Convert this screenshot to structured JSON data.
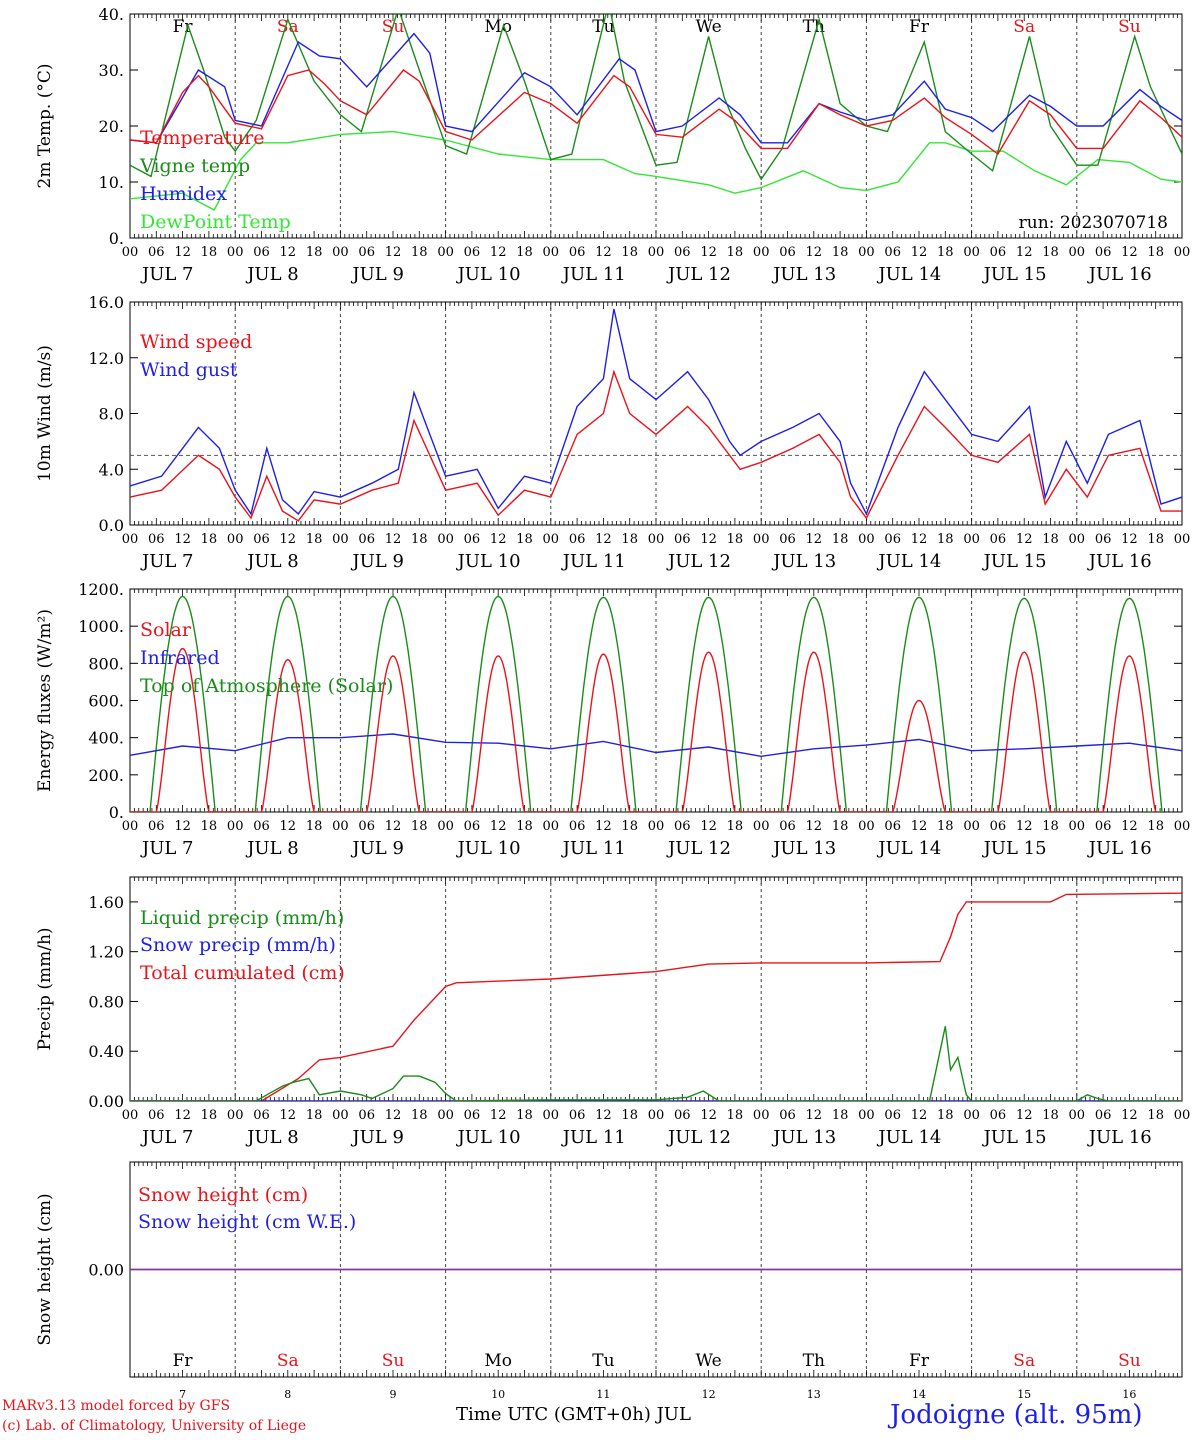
{
  "colors": {
    "red": "#e8131b",
    "green": "#1a8c1a",
    "blue": "#1f1fe6",
    "lime": "#33e633",
    "purple": "#7a3aa8",
    "black": "#000000"
  },
  "days": [
    {
      "dow": "Fr",
      "weekend": false,
      "label": "JUL  7",
      "num": "7"
    },
    {
      "dow": "Sa",
      "weekend": true,
      "label": "JUL  8",
      "num": "8"
    },
    {
      "dow": "Su",
      "weekend": true,
      "label": "JUL  9",
      "num": "9"
    },
    {
      "dow": "Mo",
      "weekend": false,
      "label": "JUL 10",
      "num": "10"
    },
    {
      "dow": "Tu",
      "weekend": false,
      "label": "JUL 11",
      "num": "11"
    },
    {
      "dow": "We",
      "weekend": false,
      "label": "JUL 12",
      "num": "12"
    },
    {
      "dow": "Th",
      "weekend": false,
      "label": "JUL 13",
      "num": "13"
    },
    {
      "dow": "Fr",
      "weekend": false,
      "label": "JUL 14",
      "num": "14"
    },
    {
      "dow": "Sa",
      "weekend": true,
      "label": "JUL 15",
      "num": "15"
    },
    {
      "dow": "Su",
      "weekend": true,
      "label": "JUL 16",
      "num": "16"
    }
  ],
  "hour_ticks": [
    "00",
    "06",
    "12",
    "18"
  ],
  "hour_end": "00",
  "footer": {
    "model": "MARv3.13 model forced by GFS",
    "credit": "(c) Lab. of Climatology, University of Liege",
    "xlabel": "Time UTC (GMT+0h) JUL",
    "station": "Jodoigne (alt. 95m)"
  },
  "chart_data": [
    {
      "type": "line",
      "ylabel": "2m Temp. (°C)",
      "ylim": [
        0,
        40
      ],
      "yticks": [
        "0.",
        "10.",
        "20.",
        "30.",
        "40."
      ],
      "annotation": "run: 2023070718",
      "x_unit": "day index (0 = JUL 7 00 UTC)",
      "series": [
        {
          "name": "Temperature",
          "color": "#e8131b",
          "x": [
            0,
            0.25,
            0.5,
            0.65,
            0.75,
            1,
            1.25,
            1.5,
            1.7,
            1.85,
            2,
            2.25,
            2.6,
            2.75,
            3,
            3.25,
            3.75,
            4,
            4.25,
            4.6,
            4.75,
            5,
            5.25,
            5.6,
            5.75,
            6,
            6.25,
            6.55,
            6.75,
            7,
            7.25,
            7.55,
            7.75,
            8,
            8.25,
            8.55,
            8.75,
            9,
            9.25,
            9.6,
            9.8,
            10
          ],
          "y": [
            17.5,
            17,
            26,
            29,
            27,
            20.5,
            19.5,
            29,
            30,
            27.5,
            24.5,
            22,
            30,
            28,
            19,
            17.5,
            26,
            24,
            20.5,
            29,
            27,
            18.5,
            18,
            23,
            21,
            16,
            16,
            24,
            22,
            20,
            21,
            25,
            21.5,
            18.5,
            15,
            24.5,
            22,
            16,
            16,
            24.5,
            21.5,
            18
          ]
        },
        {
          "name": "Vigne temp",
          "color": "#1a8c1a",
          "x": [
            0,
            0.2,
            0.55,
            0.7,
            0.9,
            1,
            1.2,
            1.5,
            1.75,
            2,
            2.2,
            2.55,
            2.75,
            3,
            3.2,
            3.55,
            3.75,
            4,
            4.2,
            4.55,
            4.7,
            5,
            5.2,
            5.5,
            5.65,
            5.85,
            6,
            6.2,
            6.55,
            6.75,
            7,
            7.2,
            7.55,
            7.75,
            8,
            8.2,
            8.55,
            8.75,
            9,
            9.2,
            9.55,
            9.7,
            10
          ],
          "y": [
            13,
            11,
            38,
            30,
            18,
            15.5,
            21,
            39,
            28,
            22,
            19,
            41,
            30,
            16.5,
            15,
            38,
            28,
            14,
            15,
            42,
            28,
            13,
            13.5,
            36,
            25,
            16,
            10.5,
            16,
            39,
            24,
            20,
            19,
            35,
            19,
            15,
            12,
            36,
            20,
            13,
            13,
            36,
            27,
            15
          ]
        },
        {
          "name": "Humidex",
          "color": "#1f1fe6",
          "x": [
            0,
            0.25,
            0.65,
            0.9,
            1,
            1.25,
            1.6,
            1.8,
            2,
            2.25,
            2.7,
            2.85,
            3,
            3.25,
            3.75,
            4,
            4.25,
            4.65,
            4.8,
            5,
            5.25,
            5.6,
            5.8,
            6,
            6.25,
            6.55,
            6.75,
            7,
            7.25,
            7.55,
            7.75,
            8,
            8.2,
            8.55,
            8.75,
            9,
            9.25,
            9.6,
            9.8,
            10
          ],
          "y": [
            17.5,
            17,
            30,
            27,
            21,
            20,
            35,
            32.5,
            32,
            27,
            36.5,
            33,
            20,
            19,
            29.5,
            27,
            22,
            32,
            30,
            19,
            20,
            25,
            22,
            17,
            17,
            24,
            22.5,
            21,
            22,
            28,
            23,
            21.5,
            19,
            25.5,
            23.5,
            20,
            20,
            26.5,
            23.5,
            21
          ]
        },
        {
          "name": "DewPoint Temp",
          "color": "#33e633",
          "x": [
            0,
            0.5,
            0.8,
            1.05,
            1.2,
            1.5,
            2,
            2.5,
            3,
            3.5,
            4,
            4.5,
            4.8,
            5,
            5.5,
            5.75,
            6,
            6.4,
            6.75,
            7,
            7.3,
            7.6,
            7.75,
            8,
            8.3,
            8.6,
            8.9,
            9.2,
            9.5,
            9.8,
            10
          ],
          "y": [
            7,
            8,
            5,
            14,
            17,
            17,
            18.5,
            19,
            17.5,
            15,
            14,
            14,
            11.5,
            11,
            9.5,
            8,
            9,
            12,
            9,
            8.5,
            10,
            17,
            17,
            15.5,
            15.5,
            12,
            9.5,
            14,
            13.5,
            10.5,
            10
          ]
        }
      ]
    },
    {
      "type": "line",
      "ylabel": "10m Wind (m/s)",
      "ylim": [
        0,
        16
      ],
      "yticks": [
        "0.0",
        "4.0",
        "8.0",
        "12.0",
        "16.0"
      ],
      "reference_line": 5,
      "x_unit": "day index (0 = JUL 7 00 UTC)",
      "series": [
        {
          "name": "Wind speed",
          "color": "#e8131b",
          "x": [
            0,
            0.3,
            0.65,
            0.85,
            1,
            1.15,
            1.3,
            1.45,
            1.6,
            1.75,
            2,
            2.3,
            2.55,
            2.7,
            2.85,
            3,
            3.3,
            3.5,
            3.75,
            4,
            4.25,
            4.5,
            4.6,
            4.75,
            5,
            5.3,
            5.5,
            5.7,
            5.8,
            6,
            6.3,
            6.55,
            6.75,
            6.85,
            7,
            7.3,
            7.55,
            7.75,
            8,
            8.25,
            8.55,
            8.7,
            8.9,
            9.1,
            9.3,
            9.6,
            9.8,
            10
          ],
          "y": [
            2,
            2.5,
            5,
            4,
            2,
            0.5,
            3.5,
            1,
            0.3,
            1.8,
            1.5,
            2.5,
            3,
            7.5,
            5,
            2.5,
            3,
            0.7,
            2.5,
            2,
            6.5,
            8,
            11,
            8,
            6.5,
            8.5,
            7,
            5,
            4,
            4.5,
            5.5,
            6.5,
            4.5,
            2,
            0.5,
            5,
            8.5,
            7,
            5,
            4.5,
            6.5,
            1.5,
            4,
            2,
            5,
            5.5,
            1,
            1
          ]
        },
        {
          "name": "Wind gust",
          "color": "#1f1fe6",
          "x": [
            0,
            0.3,
            0.65,
            0.85,
            1,
            1.15,
            1.3,
            1.45,
            1.6,
            1.75,
            2,
            2.3,
            2.55,
            2.7,
            2.85,
            3,
            3.3,
            3.5,
            3.75,
            4,
            4.25,
            4.5,
            4.6,
            4.75,
            5,
            5.3,
            5.5,
            5.7,
            5.8,
            6,
            6.3,
            6.55,
            6.75,
            6.85,
            7,
            7.3,
            7.55,
            7.75,
            8,
            8.25,
            8.55,
            8.7,
            8.9,
            9.1,
            9.3,
            9.6,
            9.8,
            10
          ],
          "y": [
            2.8,
            3.5,
            7,
            5.5,
            2.5,
            0.8,
            5.5,
            1.8,
            0.8,
            2.4,
            2,
            3,
            4,
            9.5,
            6.5,
            3.5,
            4,
            1.2,
            3.5,
            3,
            8.5,
            10.5,
            15.5,
            10.5,
            9,
            11,
            9,
            6,
            5,
            6,
            7,
            8,
            6,
            3,
            0.8,
            7,
            11,
            9,
            6.5,
            6,
            8.5,
            2,
            6,
            3,
            6.5,
            7.5,
            1.5,
            2
          ]
        }
      ]
    },
    {
      "type": "line",
      "ylabel": "Energy fluxes (W/m²)",
      "ylim": [
        0,
        1200
      ],
      "yticks": [
        "0.",
        "200.",
        "400.",
        "600.",
        "800.",
        "1000.",
        "1200."
      ],
      "x_unit": "day index (0 = JUL 7 00 UTC)",
      "series": [
        {
          "name": "Solar",
          "color": "#e8131b",
          "daily_peak": [
            880,
            820,
            840,
            840,
            850,
            860,
            860,
            600,
            860,
            840
          ]
        },
        {
          "name": "Infrared",
          "color": "#1f1fe6",
          "x": [
            0,
            0.5,
            1,
            1.5,
            2,
            2.5,
            3,
            3.5,
            4,
            4.5,
            5,
            5.5,
            6,
            6.5,
            7,
            7.5,
            8,
            8.5,
            9,
            9.5,
            10
          ],
          "y": [
            305,
            355,
            330,
            400,
            400,
            420,
            375,
            370,
            340,
            380,
            320,
            350,
            300,
            340,
            360,
            390,
            330,
            340,
            355,
            370,
            330
          ]
        },
        {
          "name": "Top of Atmosphere (Solar)",
          "color": "#1a8c1a",
          "daily_peak": [
            1160,
            1160,
            1160,
            1160,
            1155,
            1155,
            1155,
            1155,
            1150,
            1150
          ]
        }
      ]
    },
    {
      "type": "line",
      "ylabel": "Precip (mm/h)",
      "ylim": [
        0,
        1.8
      ],
      "yticks": [
        "0.00",
        "0.40",
        "0.80",
        "1.20",
        "1.60"
      ],
      "x_unit": "day index (0 = JUL 7 00 UTC)",
      "series": [
        {
          "name": "Liquid precip (mm/h)",
          "color": "#1a8c1a",
          "x": [
            0,
            1.2,
            1.3,
            1.45,
            1.55,
            1.7,
            1.8,
            2,
            2.2,
            2.3,
            2.5,
            2.6,
            2.75,
            2.9,
            3,
            3.1,
            4,
            5,
            5.3,
            5.45,
            5.6,
            7.6,
            7.75,
            7.8,
            7.87,
            7.95,
            8,
            9,
            9.1,
            9.2,
            9.3,
            10
          ],
          "y": [
            0,
            0,
            0.05,
            0.12,
            0.15,
            0.18,
            0.05,
            0.08,
            0.05,
            0.02,
            0.1,
            0.2,
            0.2,
            0.15,
            0.06,
            0,
            0.01,
            0.01,
            0.03,
            0.08,
            0,
            0,
            0.6,
            0.25,
            0.35,
            0.05,
            0,
            0,
            0.05,
            0.02,
            0,
            0
          ]
        },
        {
          "name": "Snow precip (mm/h)",
          "color": "#1f1fe6",
          "x": [
            0,
            10
          ],
          "y": [
            0,
            0
          ]
        },
        {
          "name": "Total cumulated (cm)",
          "color": "#e8131b",
          "x": [
            0,
            1.25,
            1.6,
            1.8,
            2,
            2.5,
            2.7,
            3,
            3.1,
            4,
            5,
            5.5,
            6,
            7,
            7.7,
            7.8,
            7.87,
            7.95,
            8,
            8.75,
            8.9,
            10
          ],
          "y": [
            0,
            0,
            0.18,
            0.33,
            0.35,
            0.44,
            0.65,
            0.92,
            0.95,
            0.98,
            1.04,
            1.1,
            1.11,
            1.11,
            1.12,
            1.32,
            1.5,
            1.6,
            1.6,
            1.6,
            1.66,
            1.67
          ]
        }
      ]
    },
    {
      "type": "line",
      "ylabel": "Snow height (cm)",
      "yticks": [
        "0.00"
      ],
      "x_unit": "day index (0 = JUL 7 00 UTC)",
      "series": [
        {
          "name": "Snow height (cm)",
          "color": "#e8131b",
          "x": [
            0,
            10
          ],
          "y": [
            0,
            0
          ]
        },
        {
          "name": "Snow height (cm W.E.)",
          "color": "#1f1fe6",
          "x": [
            0,
            10
          ],
          "y": [
            0,
            0
          ]
        }
      ]
    }
  ]
}
